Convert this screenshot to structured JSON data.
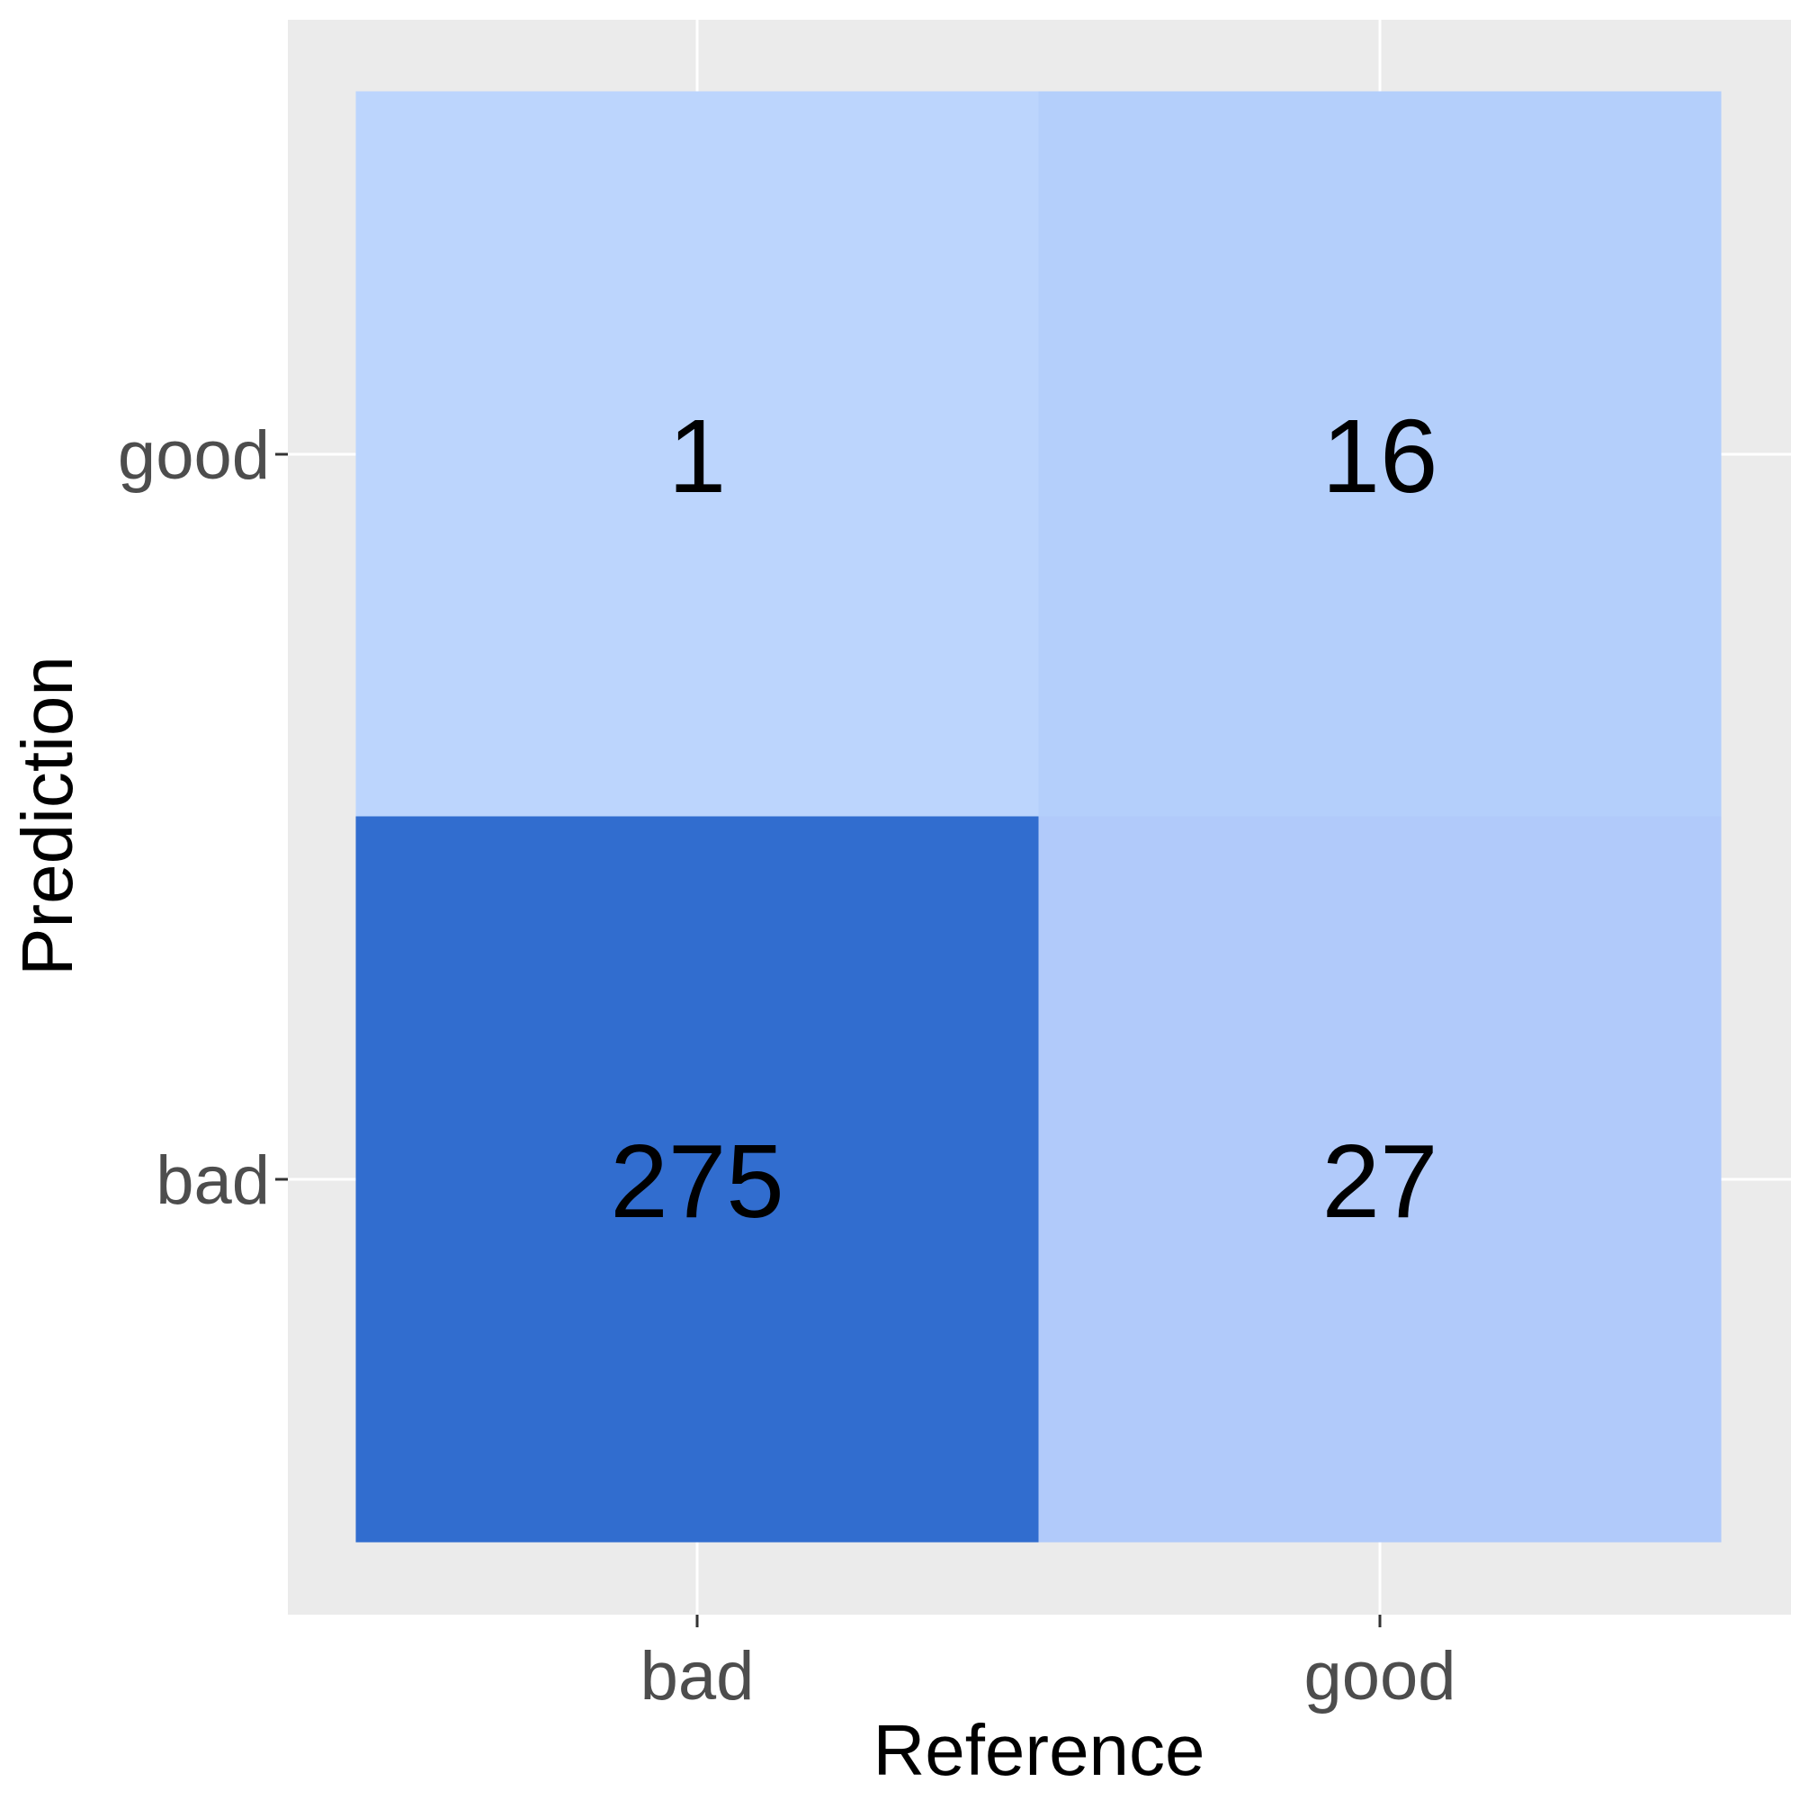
{
  "chart_data": {
    "type": "heatmap",
    "title": "",
    "xlabel": "Reference",
    "ylabel": "Prediction",
    "x_categories": [
      "bad",
      "good"
    ],
    "y_categories": [
      "bad",
      "good"
    ],
    "cells": [
      {
        "reference": "bad",
        "prediction": "good",
        "value": 1,
        "color": "#bcd5fd"
      },
      {
        "reference": "good",
        "prediction": "good",
        "value": 16,
        "color": "#b4cffb"
      },
      {
        "reference": "bad",
        "prediction": "bad",
        "value": 275,
        "color": "#316dcf"
      },
      {
        "reference": "good",
        "prediction": "bad",
        "value": 27,
        "color": "#b1cafa"
      }
    ],
    "panel_background": "#ebebeb",
    "grid": true,
    "grid_color": "#ffffff",
    "legend": "none"
  }
}
